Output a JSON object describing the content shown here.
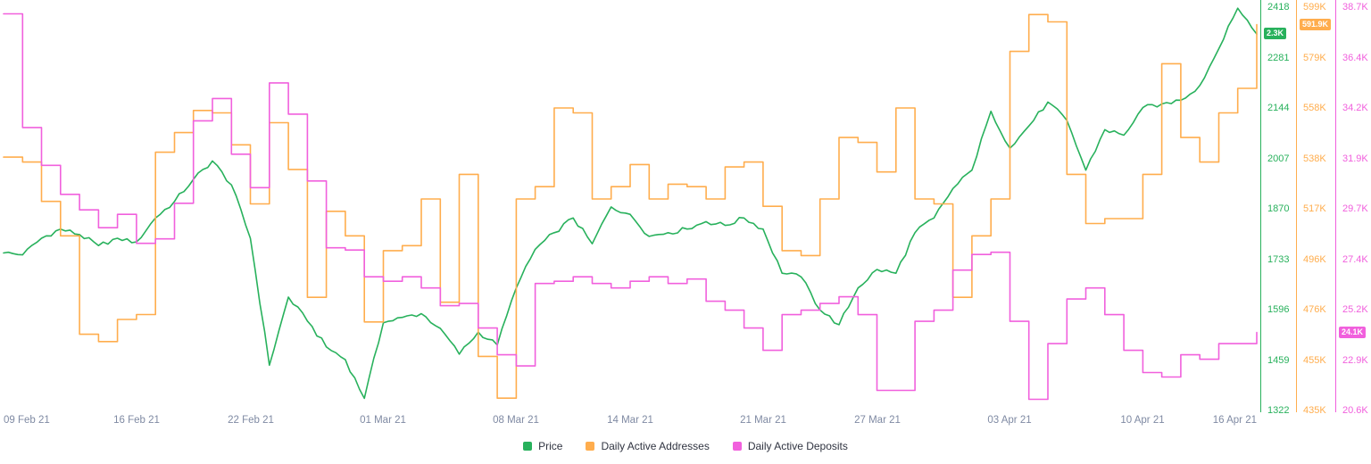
{
  "chart_data": {
    "type": "line",
    "title": "",
    "grid": false,
    "legend_position": "bottom-center",
    "n_days": 67,
    "x_start": "09 Feb 21",
    "x_end": "16 Apr 21",
    "x_tick_labels": [
      "09 Feb 21",
      "16 Feb 21",
      "22 Feb 21",
      "01 Mar 21",
      "08 Mar 21",
      "14 Mar 21",
      "21 Mar 21",
      "27 Mar 21",
      "03 Apr 21",
      "10 Apr 21",
      "16 Apr 21"
    ],
    "x_tick_day_index": [
      0,
      7,
      13,
      20,
      27,
      33,
      40,
      46,
      53,
      60,
      66
    ],
    "series": [
      {
        "name": "Price",
        "color": "#28b15c",
        "style": "line",
        "unit": "",
        "last_badge": "2.3K",
        "axis": {
          "min": 1322,
          "max": 2418,
          "ticks": [
            "2418",
            "2281",
            "2144",
            "2007",
            "1870",
            "1733",
            "1596",
            "1459",
            "1322"
          ]
        },
        "values": [
          1750,
          1745,
          1790,
          1815,
          1800,
          1770,
          1790,
          1780,
          1845,
          1890,
          1950,
          2000,
          1935,
          1790,
          1445,
          1630,
          1565,
          1495,
          1460,
          1355,
          1560,
          1575,
          1585,
          1545,
          1475,
          1535,
          1500,
          1655,
          1760,
          1805,
          1845,
          1775,
          1875,
          1855,
          1795,
          1805,
          1815,
          1835,
          1825,
          1845,
          1815,
          1695,
          1685,
          1595,
          1555,
          1655,
          1705,
          1695,
          1805,
          1845,
          1925,
          1975,
          2135,
          2035,
          2095,
          2160,
          2110,
          1975,
          2085,
          2070,
          2145,
          2155,
          2165,
          2205,
          2305,
          2415,
          2345
        ]
      },
      {
        "name": "Daily Active Addresses",
        "color": "#ffad4d",
        "style": "step",
        "unit": "K",
        "last_badge": "591.9K",
        "axis": {
          "min": 435,
          "max": 599,
          "ticks": [
            "599K",
            "579K",
            "558K",
            "538K",
            "517K",
            "496K",
            "476K",
            "455K",
            "435K"
          ]
        },
        "values": [
          538,
          536,
          520,
          506,
          466,
          463,
          472,
          474,
          540,
          548,
          557,
          556,
          543,
          519,
          552,
          533,
          481,
          516,
          506,
          471,
          500,
          502,
          521,
          479,
          531,
          457,
          440,
          521,
          526,
          558,
          556,
          521,
          526,
          535,
          521,
          527,
          526,
          521,
          534,
          536,
          518,
          500,
          498,
          521,
          546,
          544,
          532,
          558,
          521,
          519,
          481,
          506,
          521,
          581,
          596,
          593,
          531,
          511,
          513,
          513,
          531,
          576,
          546,
          536,
          556,
          566,
          591.9
        ]
      },
      {
        "name": "Daily Active Deposits",
        "color": "#f160dd",
        "style": "step",
        "unit": "K",
        "last_badge": "24.1K",
        "axis": {
          "min": 20.6,
          "max": 38.7,
          "ticks": [
            "38.7K",
            "36.4K",
            "34.2K",
            "31.9K",
            "29.7K",
            "27.4K",
            "25.2K",
            "22.9K",
            "20.6K"
          ]
        },
        "values": [
          38.4,
          33.3,
          31.6,
          30.3,
          29.6,
          28.8,
          29.4,
          28.1,
          28.3,
          29.9,
          33.6,
          34.6,
          32.1,
          30.6,
          35.3,
          33.9,
          30.9,
          27.9,
          27.8,
          26.6,
          26.4,
          26.6,
          26.1,
          25.3,
          25.4,
          24.3,
          23.1,
          22.6,
          26.3,
          26.4,
          26.6,
          26.3,
          26.1,
          26.4,
          26.6,
          26.3,
          26.5,
          25.5,
          25.1,
          24.3,
          23.3,
          24.9,
          25.1,
          25.4,
          25.7,
          24.9,
          21.5,
          21.5,
          24.6,
          25.1,
          26.9,
          27.6,
          27.7,
          24.6,
          21.1,
          23.6,
          25.6,
          26.1,
          24.9,
          23.3,
          22.3,
          22.1,
          23.1,
          22.9,
          23.6,
          23.6,
          24.1
        ]
      }
    ],
    "legend": [
      "Price",
      "Daily Active Addresses",
      "Daily Active Deposits"
    ],
    "colors": {
      "price": "#28b15c",
      "addresses": "#ffad4d",
      "deposits": "#f160dd",
      "x_label": "#7f8aa3"
    }
  }
}
